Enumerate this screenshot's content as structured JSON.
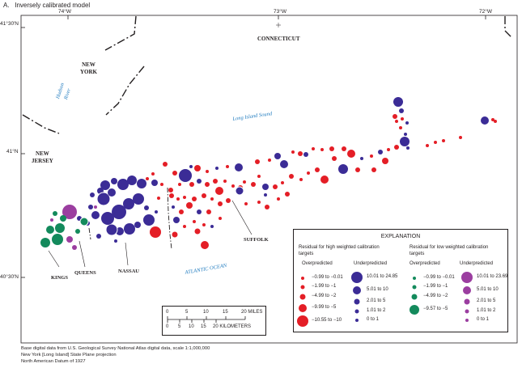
{
  "figure_label": "A.",
  "figure_title": "Inversely calibrated model",
  "longitudes": [
    "74°W",
    "73°W",
    "72°W"
  ],
  "latitudes": [
    "41°30'N",
    "41°N",
    "40°30'N"
  ],
  "states": {
    "new_york": [
      "NEW",
      "YORK"
    ],
    "connecticut": "CONNECTICUT",
    "new_jersey": [
      "NEW",
      "JERSEY"
    ]
  },
  "water_labels": {
    "hudson": [
      "Hudson",
      "River"
    ],
    "sound": "Long Island Sound",
    "ocean": "ATLANTIC OCEAN"
  },
  "counties": {
    "kings": "KINGS",
    "queens": "QUEENS",
    "nassau": "NASSAU",
    "suffolk": "SUFFOLK"
  },
  "scale_bar": {
    "miles_ticks": [
      "0",
      "5",
      "10",
      "15",
      "20 MILES"
    ],
    "km_ticks": [
      "0",
      "5",
      "10",
      "15",
      "20 KILOMETERS"
    ]
  },
  "legend": {
    "title": "EXPLANATION",
    "high_heading": [
      "Residual for high weighted calibration",
      "targets"
    ],
    "low_heading": [
      "Residual for low weighted calibration",
      "targets"
    ],
    "overpredicted": "Overpredicted",
    "underpredicted": "Underpredicted",
    "high_over": [
      "−0.99 to −0.01",
      "−1.99 to −1",
      "−4.99 to −2",
      "−9.99 to −5",
      "−10.55 to −10"
    ],
    "high_under": [
      "10.01 to 24.85",
      "5.01 to 10",
      "2.01 to 5",
      "1.01 to 2",
      "0 to 1"
    ],
    "low_over": [
      "−0.99 to −0.01",
      "−1.99 to −1",
      "−4.99 to −2",
      "−9.57 to −5"
    ],
    "low_under": [
      "10.01 to 23.69",
      "5.01 to 10",
      "2.01 to 5",
      "1.01 to 2",
      "0 to 1"
    ],
    "colors": {
      "high_over": "#e41e26",
      "high_under": "#3b2c96",
      "low_over": "#138a5c",
      "low_under": "#9b3ea0"
    }
  },
  "credits": [
    "Base digital data from U.S. Geological Survey National Atlas digital data, scale 1:1,000,000",
    "New York [Long Island] State Plane projection",
    "North American Datum of 1927"
  ]
}
